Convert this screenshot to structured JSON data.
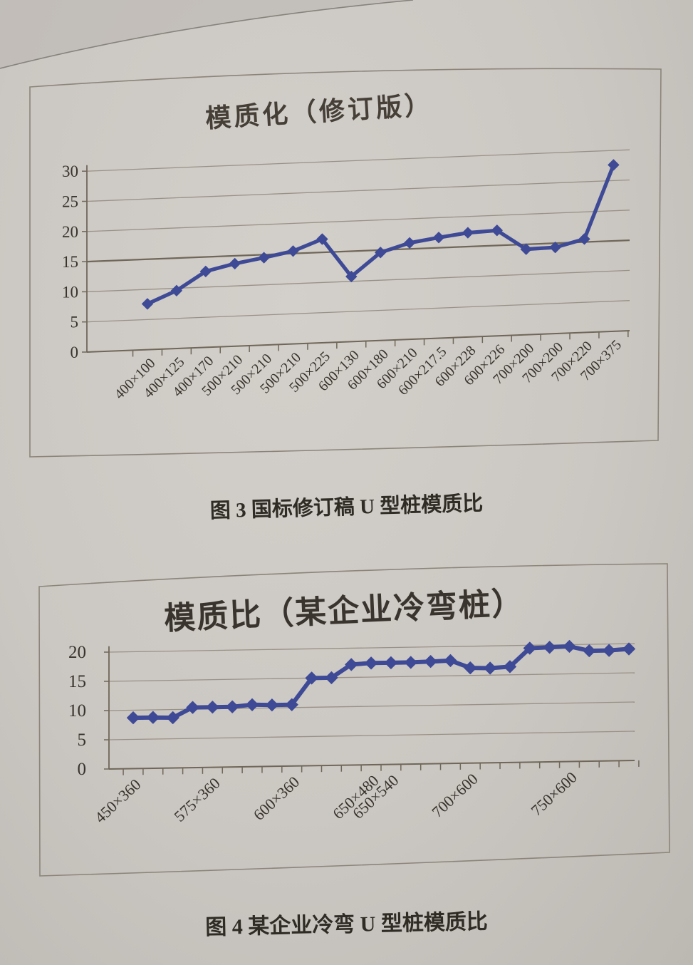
{
  "figures": [
    {
      "caption": "图 3 国标修订稿 U 型桩模质比"
    },
    {
      "caption": "图 4 某企业冷弯 U 型桩模质比"
    }
  ],
  "chart_data": [
    {
      "type": "line",
      "title": "模质化（修订版）",
      "categories": [
        "400×100",
        "400×125",
        "400×170",
        "500×210",
        "500×210",
        "500×210",
        "500×225",
        "600×130",
        "600×180",
        "600×210",
        "600×217.5",
        "600×228",
        "600×226",
        "700×200",
        "700×200",
        "700×220",
        "700×375"
      ],
      "values": [
        7.6,
        9.6,
        12.6,
        13.7,
        14.5,
        15.4,
        17.2,
        10.8,
        14.6,
        16.0,
        16.7,
        17.3,
        17.5,
        14.2,
        14.3,
        15.5,
        27.6
      ],
      "xlabel": "",
      "ylabel": "",
      "ylim": [
        0,
        31
      ],
      "yticks": [
        0,
        5,
        10,
        15,
        20,
        25,
        30
      ],
      "grid": true,
      "legend": false,
      "emphasized_gridline": 15,
      "line_color": "#3e4a96",
      "marker": "diamond"
    },
    {
      "type": "line",
      "title": "模质比（某企业冷弯桩）",
      "n_points": 26,
      "values": [
        8.7,
        8.7,
        8.6,
        10.3,
        10.3,
        10.3,
        10.6,
        10.5,
        10.5,
        15.0,
        15.0,
        17.2,
        17.4,
        17.4,
        17.4,
        17.5,
        17.6,
        16.3,
        16.2,
        16.4,
        19.5,
        19.6,
        19.7,
        18.9,
        18.9,
        19.1
      ],
      "visible_x_labels": [
        {
          "index": 0,
          "label": "450×360"
        },
        {
          "index": 4,
          "label": "575×360"
        },
        {
          "index": 8,
          "label": "600×360"
        },
        {
          "index": 12,
          "label": "650×480"
        },
        {
          "index": 13,
          "label": "650×540"
        },
        {
          "index": 17,
          "label": "700×600"
        },
        {
          "index": 22,
          "label": "750×600"
        }
      ],
      "xlabel": "",
      "ylabel": "",
      "ylim": [
        0,
        21
      ],
      "yticks": [
        0,
        5,
        10,
        15,
        20
      ],
      "grid": true,
      "legend": false,
      "line_color": "#3e4a96",
      "marker": "diamond"
    }
  ]
}
